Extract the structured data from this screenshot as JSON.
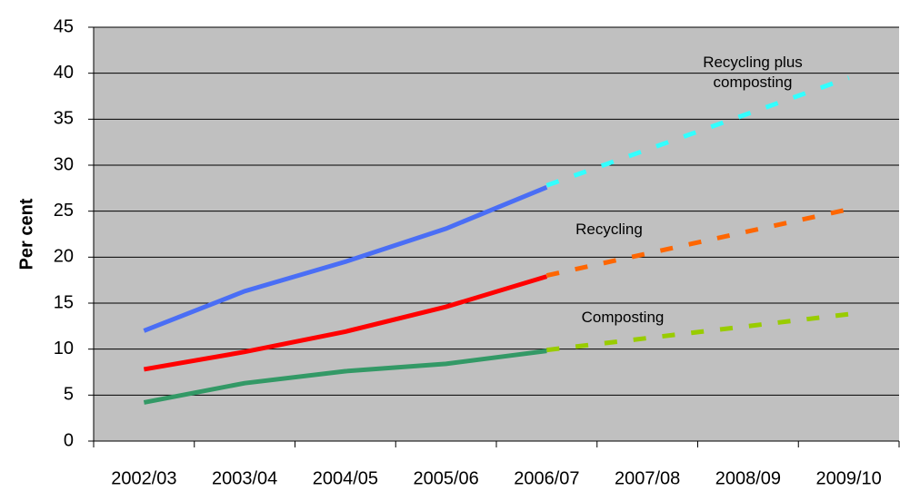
{
  "chart_data": {
    "type": "line",
    "y_label": "Per cent",
    "categories": [
      "2002/03",
      "2003/04",
      "2004/05",
      "2005/06",
      "2006/07",
      "2007/08",
      "2008/09",
      "2009/10"
    ],
    "ylim": [
      0,
      45
    ],
    "yticks": [
      0,
      5,
      10,
      15,
      20,
      25,
      30,
      35,
      40,
      45
    ],
    "grid": true,
    "series": [
      {
        "color": "#4a6ef5",
        "style": "solid",
        "values": [
          12,
          16.3,
          19.5,
          23.1,
          27.6,
          null,
          null,
          null
        ]
      },
      {
        "color": "#ff0000",
        "style": "solid",
        "values": [
          7.8,
          9.7,
          11.9,
          14.6,
          17.9,
          null,
          null,
          null
        ]
      },
      {
        "color": "#339966",
        "style": "solid",
        "values": [
          4.2,
          6.3,
          7.6,
          8.4,
          9.8,
          null,
          null,
          null
        ]
      },
      {
        "name": "Recycling plus composting",
        "color": "#33ffff",
        "style": "dashed",
        "values": [
          null,
          null,
          null,
          null,
          27.8,
          31.7,
          35.6,
          39.5
        ]
      },
      {
        "name": "Recycling",
        "color": "#ff6600",
        "style": "dashed",
        "values": [
          null,
          null,
          null,
          null,
          18,
          20.4,
          22.8,
          25.2
        ]
      },
      {
        "name": "Composting",
        "color": "#99cc00",
        "style": "dashed",
        "values": [
          null,
          null,
          null,
          null,
          9.9,
          11.2,
          12.5,
          13.8
        ]
      }
    ]
  }
}
